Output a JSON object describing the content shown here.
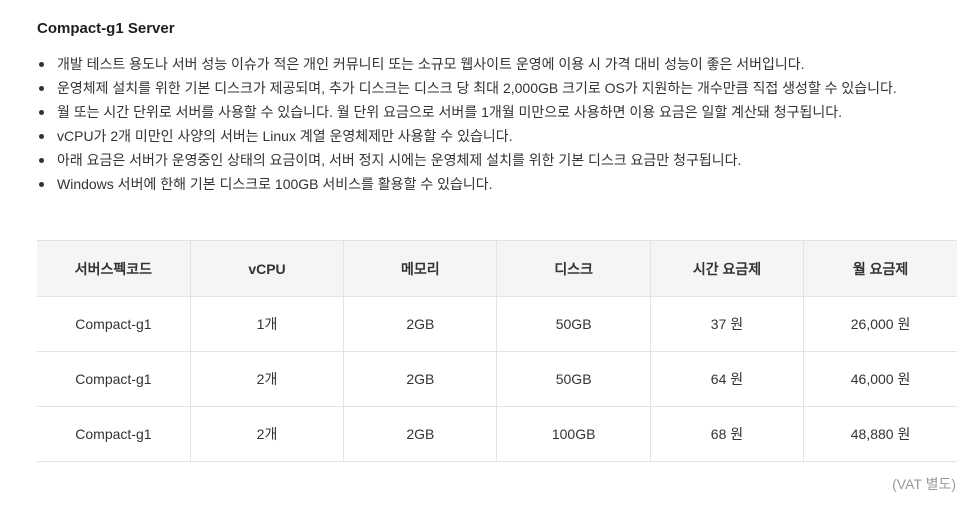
{
  "section": {
    "title": "Compact-g1 Server",
    "bullets": [
      "개발 테스트 용도나 서버 성능 이슈가 적은 개인 커뮤니티 또는 소규모 웹사이트 운영에 이용 시 가격 대비 성능이 좋은 서버입니다.",
      "운영체제 설치를 위한 기본 디스크가 제공되며, 추가 디스크는 디스크 당 최대 2,000GB 크기로 OS가 지원하는 개수만큼 직접 생성할 수 있습니다.",
      "월 또는 시간 단위로 서버를 사용할 수 있습니다. 월 단위 요금으로 서버를 1개월 미만으로 사용하면 이용 요금은 일할 계산돼 청구됩니다.",
      "vCPU가 2개 미만인 사양의 서버는 Linux 계열 운영체제만 사용할 수 있습니다.",
      "아래 요금은 서버가 운영중인 상태의 요금이며, 서버 정지 시에는 운영체제 설치를 위한 기본 디스크 요금만 청구됩니다.",
      "Windows 서버에 한해 기본 디스크로 100GB 서비스를 활용할 수 있습니다."
    ]
  },
  "table": {
    "headers": [
      "서버스펙코드",
      "vCPU",
      "메모리",
      "디스크",
      "시간 요금제",
      "월 요금제"
    ],
    "rows": [
      [
        "Compact-g1",
        "1개",
        "2GB",
        "50GB",
        "37 원",
        "26,000 원"
      ],
      [
        "Compact-g1",
        "2개",
        "2GB",
        "50GB",
        "64 원",
        "46,000 원"
      ],
      [
        "Compact-g1",
        "2개",
        "2GB",
        "100GB",
        "68 원",
        "48,880 원"
      ]
    ]
  },
  "footnote": "(VAT 별도)"
}
